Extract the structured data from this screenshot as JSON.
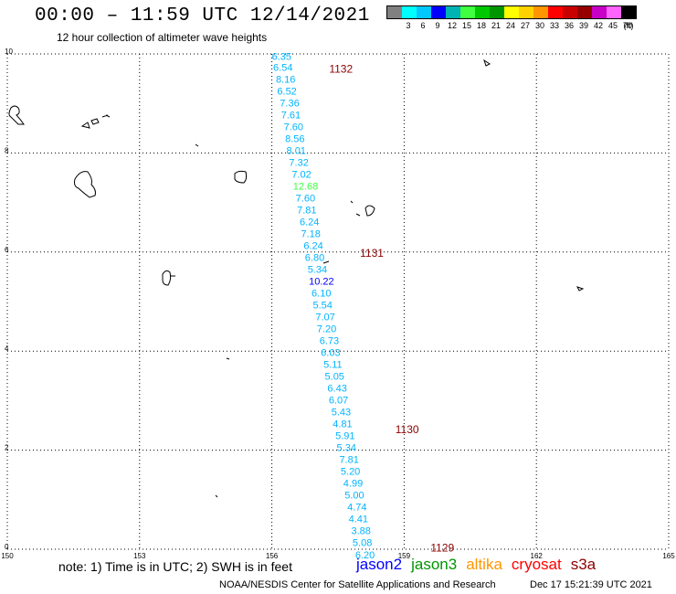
{
  "header": {
    "title": "00:00 – 11:59 UTC 12/14/2021",
    "subtitle": "12 hour collection of altimeter wave heights"
  },
  "legend": {
    "unit_label": "(ft)",
    "bins": [
      {
        "label": "",
        "color": "#808080"
      },
      {
        "label": "3",
        "color": "#00ffff"
      },
      {
        "label": "6",
        "color": "#00c8ff"
      },
      {
        "label": "9",
        "color": "#0000ff"
      },
      {
        "label": "12",
        "color": "#00b4b4"
      },
      {
        "label": "15",
        "color": "#40ff40"
      },
      {
        "label": "18",
        "color": "#00c800"
      },
      {
        "label": "21",
        "color": "#009600"
      },
      {
        "label": "24",
        "color": "#ffff00"
      },
      {
        "label": "27",
        "color": "#ffd200"
      },
      {
        "label": "30",
        "color": "#ff9600"
      },
      {
        "label": "33",
        "color": "#ff0000"
      },
      {
        "label": "36",
        "color": "#c80000"
      },
      {
        "label": "39",
        "color": "#960000"
      },
      {
        "label": "42",
        "color": "#c800c8"
      },
      {
        "label": "45",
        "color": "#ff64ff"
      },
      {
        "label": "70",
        "color": "#000000"
      }
    ]
  },
  "chart_data": {
    "type": "scatter",
    "xlim": [
      150,
      165
    ],
    "ylim": [
      0,
      10
    ],
    "x_ticks": [
      "150",
      "153",
      "156",
      "159",
      "162",
      "165"
    ],
    "y_ticks": [
      "0",
      "2",
      "4",
      "6",
      "8",
      "10"
    ],
    "grid": true,
    "track_labels": [
      {
        "text": "1132",
        "x": 157.3,
        "y": 9.62,
        "color": "#8b0000"
      },
      {
        "text": "1131",
        "x": 158.0,
        "y": 5.9,
        "color": "#8b0000"
      },
      {
        "text": "1130",
        "x": 158.8,
        "y": 2.34,
        "color": "#8b0000"
      },
      {
        "text": "1129",
        "x": 159.6,
        "y": -0.05,
        "color": "#8b0000"
      }
    ],
    "points": [
      {
        "label": "6.35",
        "x": 156.0,
        "y": 9.88,
        "color": "#00b4ff"
      },
      {
        "label": "6.54",
        "x": 156.03,
        "y": 9.66,
        "color": "#00b4ff"
      },
      {
        "label": "8.16",
        "x": 156.09,
        "y": 9.42,
        "color": "#00b4ff"
      },
      {
        "label": "6.52",
        "x": 156.12,
        "y": 9.18,
        "color": "#00b4ff"
      },
      {
        "label": "7.36",
        "x": 156.18,
        "y": 8.94,
        "color": "#00b4ff"
      },
      {
        "label": "7.61",
        "x": 156.21,
        "y": 8.7,
        "color": "#00b4ff"
      },
      {
        "label": "7.60",
        "x": 156.27,
        "y": 8.46,
        "color": "#00b4ff"
      },
      {
        "label": "8.56",
        "x": 156.3,
        "y": 8.22,
        "color": "#00b4ff"
      },
      {
        "label": "8.01",
        "x": 156.33,
        "y": 7.98,
        "color": "#00b4ff"
      },
      {
        "label": "7.32",
        "x": 156.39,
        "y": 7.74,
        "color": "#00b4ff"
      },
      {
        "label": "7.02",
        "x": 156.45,
        "y": 7.5,
        "color": "#00b4ff"
      },
      {
        "label": "12.68",
        "x": 156.48,
        "y": 7.26,
        "color": "#40ff40"
      },
      {
        "label": "7.60",
        "x": 156.54,
        "y": 7.02,
        "color": "#00b4ff"
      },
      {
        "label": "7.81",
        "x": 156.57,
        "y": 6.78,
        "color": "#00b4ff"
      },
      {
        "label": "6.24",
        "x": 156.63,
        "y": 6.54,
        "color": "#00b4ff"
      },
      {
        "label": "7.18",
        "x": 156.66,
        "y": 6.3,
        "color": "#00b4ff"
      },
      {
        "label": "6.24",
        "x": 156.72,
        "y": 6.06,
        "color": "#00b4ff"
      },
      {
        "label": "6.80",
        "x": 156.75,
        "y": 5.82,
        "color": "#00b4ff"
      },
      {
        "label": "5.34",
        "x": 156.81,
        "y": 5.58,
        "color": "#00b4ff"
      },
      {
        "label": "10.22",
        "x": 156.84,
        "y": 5.34,
        "color": "#0000ff"
      },
      {
        "label": "6.10",
        "x": 156.9,
        "y": 5.1,
        "color": "#00b4ff"
      },
      {
        "label": "5.54",
        "x": 156.93,
        "y": 4.86,
        "color": "#00b4ff"
      },
      {
        "label": "7.07",
        "x": 156.99,
        "y": 4.62,
        "color": "#00b4ff"
      },
      {
        "label": "7.20",
        "x": 157.02,
        "y": 4.38,
        "color": "#00b4ff"
      },
      {
        "label": "6.73",
        "x": 157.08,
        "y": 4.14,
        "color": "#00b4ff"
      },
      {
        "label": "6.03",
        "x": 157.11,
        "y": 3.9,
        "color": "#00b4ff"
      },
      {
        "label": "5.11",
        "x": 157.17,
        "y": 3.66,
        "color": "#00b4ff"
      },
      {
        "label": "5.05",
        "x": 157.2,
        "y": 3.42,
        "color": "#00b4ff"
      },
      {
        "label": "6.43",
        "x": 157.26,
        "y": 3.18,
        "color": "#00b4ff"
      },
      {
        "label": "6.07",
        "x": 157.29,
        "y": 2.94,
        "color": "#00b4ff"
      },
      {
        "label": "5.43",
        "x": 157.35,
        "y": 2.7,
        "color": "#00b4ff"
      },
      {
        "label": "4.81",
        "x": 157.38,
        "y": 2.46,
        "color": "#00b4ff"
      },
      {
        "label": "5.91",
        "x": 157.44,
        "y": 2.22,
        "color": "#00b4ff"
      },
      {
        "label": "5.34",
        "x": 157.47,
        "y": 1.98,
        "color": "#00b4ff"
      },
      {
        "label": "7.81",
        "x": 157.53,
        "y": 1.74,
        "color": "#00b4ff"
      },
      {
        "label": "5.20",
        "x": 157.56,
        "y": 1.5,
        "color": "#00b4ff"
      },
      {
        "label": "4.99",
        "x": 157.62,
        "y": 1.26,
        "color": "#00b4ff"
      },
      {
        "label": "5.00",
        "x": 157.65,
        "y": 1.02,
        "color": "#00b4ff"
      },
      {
        "label": "4.74",
        "x": 157.71,
        "y": 0.78,
        "color": "#00b4ff"
      },
      {
        "label": "4.41",
        "x": 157.74,
        "y": 0.54,
        "color": "#00b4ff"
      },
      {
        "label": "3.88",
        "x": 157.8,
        "y": 0.3,
        "color": "#00b4ff"
      },
      {
        "label": "5.08",
        "x": 157.83,
        "y": 0.06,
        "color": "#00b4ff"
      },
      {
        "label": "6.20",
        "x": 157.89,
        "y": -0.18,
        "color": "#00b4ff"
      }
    ]
  },
  "footer": {
    "note": "note: 1) Time is in UTC; 2) SWH is in feet",
    "satellites": [
      {
        "name": "jason2",
        "color": "#0000ff"
      },
      {
        "name": "jason3",
        "color": "#009600"
      },
      {
        "name": "altika",
        "color": "#ff9600"
      },
      {
        "name": "cryosat",
        "color": "#ff0000"
      },
      {
        "name": "s3a",
        "color": "#8b0000"
      }
    ],
    "credit": "NOAA/NESDIS Center for Satellite Applications and Research",
    "timestamp": "Dec 17 15:21:39 UTC 2021"
  }
}
